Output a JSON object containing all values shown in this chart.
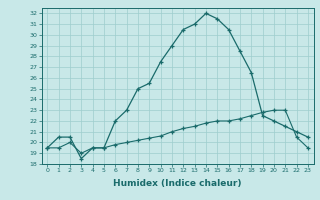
{
  "xlabel": "Humidex (Indice chaleur)",
  "background_color": "#c8e8e8",
  "grid_color": "#9ecece",
  "line_color": "#1a6b6b",
  "xlim": [
    -0.5,
    23.5
  ],
  "ylim": [
    18,
    32.5
  ],
  "yticks": [
    18,
    19,
    20,
    21,
    22,
    23,
    24,
    25,
    26,
    27,
    28,
    29,
    30,
    31,
    32
  ],
  "xticks": [
    0,
    1,
    2,
    3,
    4,
    5,
    6,
    7,
    8,
    9,
    10,
    11,
    12,
    13,
    14,
    15,
    16,
    17,
    18,
    19,
    20,
    21,
    22,
    23
  ],
  "series1_x": [
    0,
    1,
    2,
    3,
    4,
    5,
    6,
    7,
    8,
    9,
    10,
    11,
    12,
    13,
    14,
    15,
    16,
    17,
    18,
    19,
    20,
    21,
    22,
    23
  ],
  "series1_y": [
    19.5,
    20.5,
    20.5,
    18.5,
    19.5,
    19.5,
    22.0,
    23.0,
    25.0,
    25.5,
    27.5,
    29.0,
    30.5,
    31.0,
    32.0,
    31.5,
    30.5,
    28.5,
    26.5,
    22.5,
    22.0,
    21.5,
    21.0,
    20.5
  ],
  "series2_x": [
    0,
    1,
    2,
    3,
    4,
    5,
    6,
    7,
    8,
    9,
    10,
    11,
    12,
    13,
    14,
    15,
    16,
    17,
    18,
    19,
    20,
    21,
    22,
    23
  ],
  "series2_y": [
    19.5,
    19.5,
    20.0,
    19.0,
    19.5,
    19.5,
    19.8,
    20.0,
    20.2,
    20.4,
    20.6,
    21.0,
    21.3,
    21.5,
    21.8,
    22.0,
    22.0,
    22.2,
    22.5,
    22.8,
    23.0,
    23.0,
    20.5,
    19.5
  ]
}
